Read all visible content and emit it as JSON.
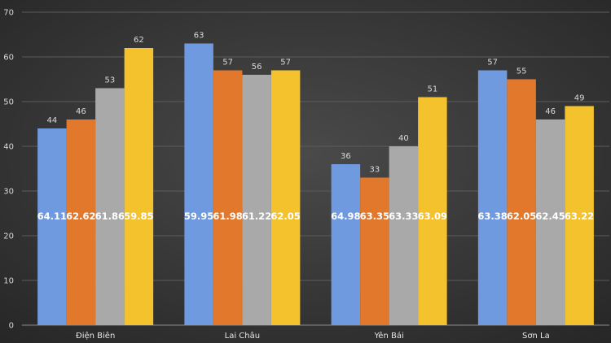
{
  "chart_data": {
    "type": "bar",
    "title": "",
    "xlabel": "",
    "ylabel": "",
    "ylim": [
      0,
      70
    ],
    "yticks": [
      0,
      10,
      20,
      30,
      40,
      50,
      60,
      70
    ],
    "grid": true,
    "legend": "none",
    "categories": [
      "Điện Biên",
      "Lai Châu",
      "Yên Bái",
      "Sơn La"
    ],
    "series": [
      {
        "color": "#6f9ae0",
        "values": [
          44,
          63,
          36,
          57
        ],
        "inner_labels": [
          "64.11",
          "59.95",
          "64.98",
          "63.38"
        ]
      },
      {
        "color": "#e2782c",
        "values": [
          46,
          57,
          33,
          55
        ],
        "inner_labels": [
          "62.62",
          "61.98",
          "63.35",
          "62.05"
        ]
      },
      {
        "color": "#a9a9a9",
        "values": [
          53,
          56,
          40,
          46
        ],
        "inner_labels": [
          "61.86",
          "61.22",
          "63.33",
          "62.45"
        ]
      },
      {
        "color": "#f3c22c",
        "values": [
          62,
          57,
          51,
          49
        ],
        "inner_labels": [
          "59.85",
          "62.05",
          "63.09",
          "63.22"
        ]
      }
    ]
  }
}
